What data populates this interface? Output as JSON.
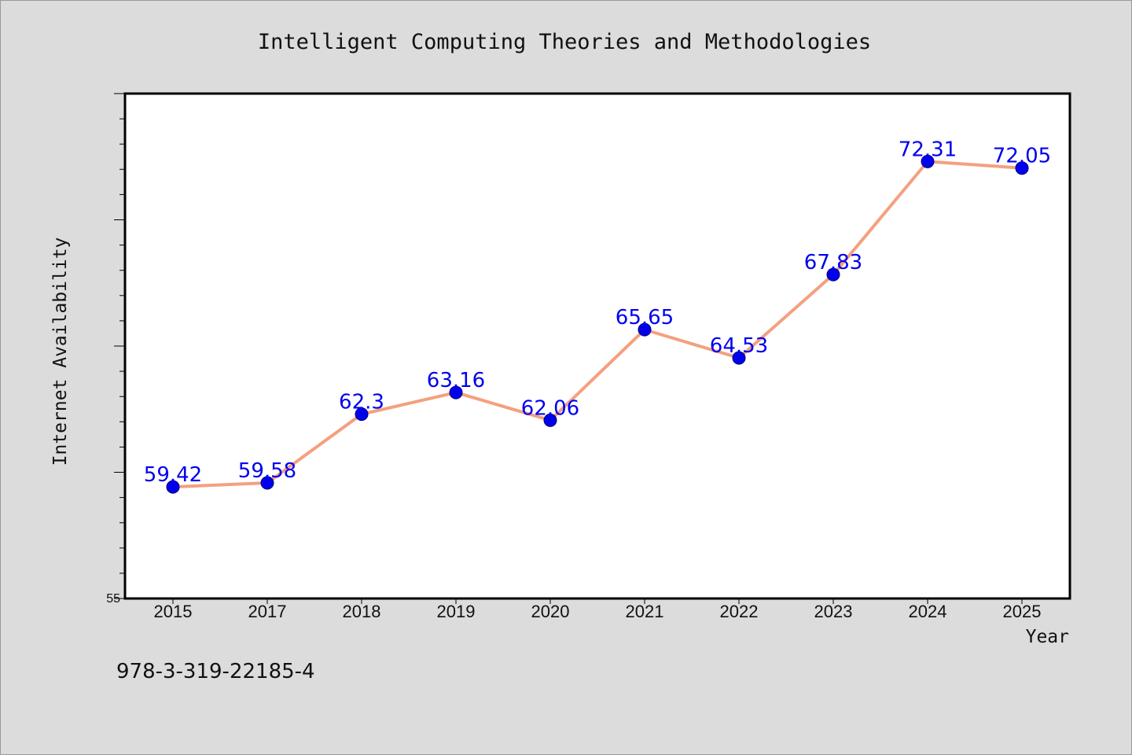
{
  "chart_data": {
    "type": "line",
    "title": "Intelligent Computing Theories and Methodologies",
    "xlabel": "Year",
    "ylabel": "Internet Availability",
    "categories": [
      "2015",
      "2017",
      "2018",
      "2019",
      "2020",
      "2021",
      "2022",
      "2023",
      "2024",
      "2025"
    ],
    "series": [
      {
        "values": [
          59.42,
          59.58,
          62.3,
          63.16,
          62.06,
          65.65,
          64.53,
          67.83,
          72.31,
          72.05
        ],
        "labels": [
          "59.42",
          "59.58",
          "62.3",
          "63.16",
          "62.06",
          "65.65",
          "64.53",
          "67.83",
          "72.31",
          "72.05"
        ],
        "line_color": "#f4a07f",
        "marker_color": "#0000ee"
      }
    ],
    "ylim": [
      55,
      75
    ],
    "y_tick_labels": [
      "55"
    ],
    "grid": false,
    "background": "#ffffff",
    "legend": "none"
  },
  "caption": "978-3-319-22185-4"
}
